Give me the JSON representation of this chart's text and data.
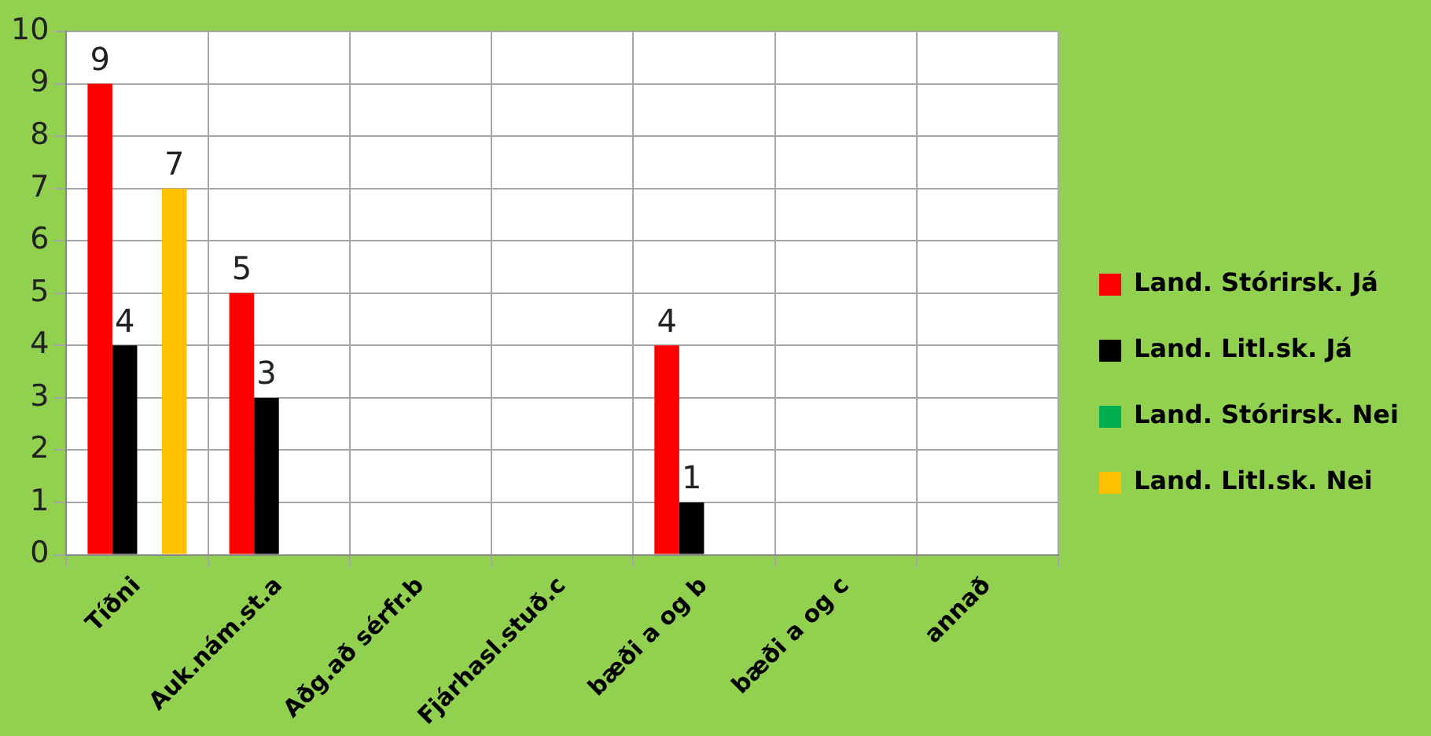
{
  "chart_data": {
    "type": "bar",
    "categories": [
      "Tíðni",
      "Auk.nám.st.a",
      "Aðg.að sérfr.b",
      "Fjárhasl.stuð.c",
      "bæði a og b",
      "bæði a og c",
      "annað"
    ],
    "series": [
      {
        "name": "Land. Stórirsk. Já",
        "color": "#ff0000",
        "values": [
          9,
          5,
          null,
          null,
          4,
          null,
          null
        ]
      },
      {
        "name": "Land. Litl.sk. Já",
        "color": "#000000",
        "values": [
          4,
          3,
          null,
          null,
          1,
          null,
          null
        ]
      },
      {
        "name": "Land. Stórirsk. Nei",
        "color": "#00b050",
        "values": [
          null,
          null,
          null,
          null,
          null,
          null,
          null
        ]
      },
      {
        "name": "Land. Litl.sk. Nei",
        "color": "#ffc000",
        "values": [
          7,
          null,
          null,
          null,
          null,
          null,
          null
        ]
      }
    ],
    "ylim": [
      0,
      10
    ],
    "yticks": [
      0,
      1,
      2,
      3,
      4,
      5,
      6,
      7,
      8,
      9,
      10
    ],
    "grid": true,
    "legend": "right",
    "data_labels": true
  }
}
